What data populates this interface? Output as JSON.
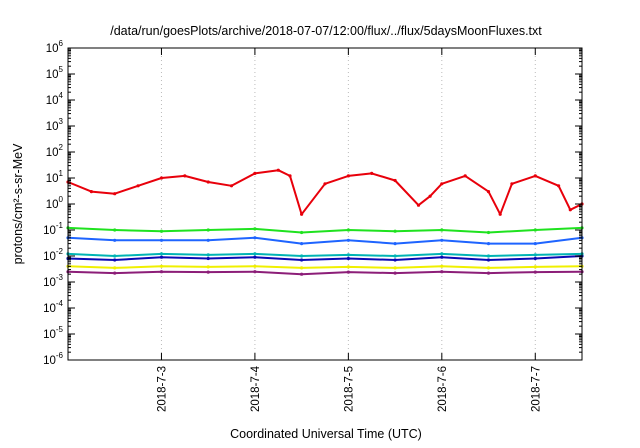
{
  "chart_data": {
    "type": "line",
    "title": "/data/run/goesPlots/archive/2018-07-07/12:00/flux/../flux/5daysMoonFluxes.txt",
    "xlabel": "Coordinated Universal Time (UTC)",
    "ylabel": "protons/cm²-s-sr-MeV",
    "y_scale": "log",
    "ylim": [
      "1e-6",
      "1e6"
    ],
    "y_ticks": [
      {
        "base": "10",
        "exp": "6"
      },
      {
        "base": "10",
        "exp": "5"
      },
      {
        "base": "10",
        "exp": "4"
      },
      {
        "base": "10",
        "exp": "3"
      },
      {
        "base": "10",
        "exp": "2"
      },
      {
        "base": "10",
        "exp": "1"
      },
      {
        "base": "10",
        "exp": "0"
      },
      {
        "base": "10",
        "exp": "-1"
      },
      {
        "base": "10",
        "exp": "-2"
      },
      {
        "base": "10",
        "exp": "-3"
      },
      {
        "base": "10",
        "exp": "-4"
      },
      {
        "base": "10",
        "exp": "-5"
      },
      {
        "base": "10",
        "exp": "-6"
      }
    ],
    "xlim": [
      "2018-07-02 00:00",
      "2018-07-07 12:00"
    ],
    "x_ticks": [
      "2018-7-3",
      "2018-7-4",
      "2018-7-5",
      "2018-7-6",
      "2018-7-7"
    ],
    "grid": "vertical dotted at x ticks",
    "legend": "none",
    "series": [
      {
        "color": "#e8000b",
        "x": [
          "2018-07-02 00:00",
          "2018-07-02 06:00",
          "2018-07-02 12:00",
          "2018-07-02 18:00",
          "2018-07-03 00:00",
          "2018-07-03 06:00",
          "2018-07-03 12:00",
          "2018-07-03 18:00",
          "2018-07-04 00:00",
          "2018-07-04 06:00",
          "2018-07-04 09:00",
          "2018-07-04 12:00",
          "2018-07-04 18:00",
          "2018-07-05 00:00",
          "2018-07-05 06:00",
          "2018-07-05 12:00",
          "2018-07-05 18:00",
          "2018-07-05 21:00",
          "2018-07-06 00:00",
          "2018-07-06 06:00",
          "2018-07-06 12:00",
          "2018-07-06 15:00",
          "2018-07-06 18:00",
          "2018-07-07 00:00",
          "2018-07-07 06:00",
          "2018-07-07 09:00",
          "2018-07-07 12:00"
        ],
        "y": [
          7,
          3,
          2.5,
          5,
          10,
          12,
          7,
          5,
          15,
          20,
          12,
          0.4,
          6,
          12,
          15,
          8,
          0.9,
          2,
          6,
          12,
          3,
          0.4,
          6,
          12,
          5,
          0.6,
          1
        ]
      },
      {
        "color": "#1fe21f",
        "x": [
          "2018-07-02 00:00",
          "2018-07-02 12:00",
          "2018-07-03 00:00",
          "2018-07-03 12:00",
          "2018-07-04 00:00",
          "2018-07-04 12:00",
          "2018-07-05 00:00",
          "2018-07-05 12:00",
          "2018-07-06 00:00",
          "2018-07-06 12:00",
          "2018-07-07 00:00",
          "2018-07-07 12:00"
        ],
        "y": [
          0.12,
          0.1,
          0.09,
          0.1,
          0.11,
          0.08,
          0.1,
          0.09,
          0.1,
          0.08,
          0.1,
          0.12
        ]
      },
      {
        "color": "#1e64ff",
        "x": [
          "2018-07-02 00:00",
          "2018-07-02 12:00",
          "2018-07-03 00:00",
          "2018-07-03 12:00",
          "2018-07-04 00:00",
          "2018-07-04 12:00",
          "2018-07-05 00:00",
          "2018-07-05 12:00",
          "2018-07-06 00:00",
          "2018-07-06 12:00",
          "2018-07-07 00:00",
          "2018-07-07 12:00"
        ],
        "y": [
          0.05,
          0.04,
          0.04,
          0.04,
          0.05,
          0.03,
          0.04,
          0.03,
          0.04,
          0.03,
          0.03,
          0.05
        ]
      },
      {
        "color": "#00b4b4",
        "x": [
          "2018-07-02 00:00",
          "2018-07-02 12:00",
          "2018-07-03 00:00",
          "2018-07-03 12:00",
          "2018-07-04 00:00",
          "2018-07-04 12:00",
          "2018-07-05 00:00",
          "2018-07-05 12:00",
          "2018-07-06 00:00",
          "2018-07-06 12:00",
          "2018-07-07 00:00",
          "2018-07-07 12:00"
        ],
        "y": [
          0.012,
          0.01,
          0.012,
          0.011,
          0.012,
          0.01,
          0.011,
          0.01,
          0.012,
          0.01,
          0.011,
          0.012
        ]
      },
      {
        "color": "#0a0ab4",
        "x": [
          "2018-07-02 00:00",
          "2018-07-02 12:00",
          "2018-07-03 00:00",
          "2018-07-03 12:00",
          "2018-07-04 00:00",
          "2018-07-04 12:00",
          "2018-07-05 00:00",
          "2018-07-05 12:00",
          "2018-07-06 00:00",
          "2018-07-06 12:00",
          "2018-07-07 00:00",
          "2018-07-07 12:00"
        ],
        "y": [
          0.008,
          0.007,
          0.009,
          0.008,
          0.009,
          0.007,
          0.008,
          0.007,
          0.009,
          0.007,
          0.008,
          0.01
        ]
      },
      {
        "color": "#f0f000",
        "x": [
          "2018-07-02 00:00",
          "2018-07-02 12:00",
          "2018-07-03 00:00",
          "2018-07-03 12:00",
          "2018-07-04 00:00",
          "2018-07-04 12:00",
          "2018-07-05 00:00",
          "2018-07-05 12:00",
          "2018-07-06 00:00",
          "2018-07-06 12:00",
          "2018-07-07 00:00",
          "2018-07-07 12:00"
        ],
        "y": [
          0.004,
          0.0035,
          0.004,
          0.0038,
          0.004,
          0.0035,
          0.0038,
          0.0035,
          0.004,
          0.0035,
          0.0038,
          0.004
        ]
      },
      {
        "color": "#8c1e78",
        "x": [
          "2018-07-02 00:00",
          "2018-07-02 12:00",
          "2018-07-03 00:00",
          "2018-07-03 12:00",
          "2018-07-04 00:00",
          "2018-07-04 12:00",
          "2018-07-05 00:00",
          "2018-07-05 12:00",
          "2018-07-06 00:00",
          "2018-07-06 12:00",
          "2018-07-07 00:00",
          "2018-07-07 12:00"
        ],
        "y": [
          0.0025,
          0.0022,
          0.0025,
          0.0024,
          0.0025,
          0.002,
          0.0024,
          0.0022,
          0.0025,
          0.0022,
          0.0024,
          0.0025
        ]
      }
    ]
  }
}
